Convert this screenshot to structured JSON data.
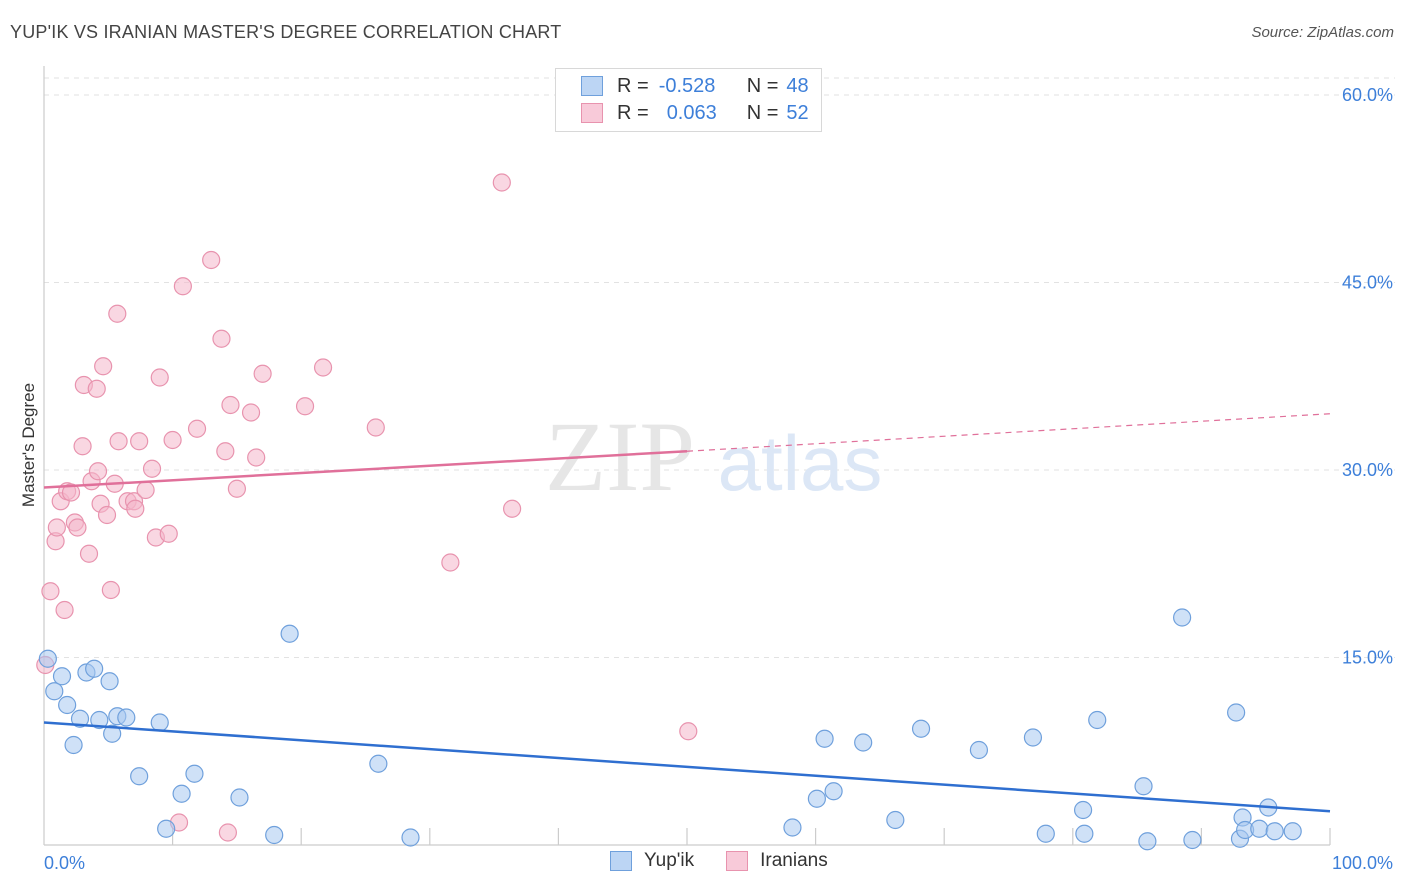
{
  "header": {
    "title": "YUP'IK VS IRANIAN MASTER'S DEGREE CORRELATION CHART",
    "source": "Source: ZipAtlas.com"
  },
  "watermark": {
    "zip": "ZIP",
    "atlas": "atlas"
  },
  "legend": {
    "rows": [
      {
        "r_label": "R =",
        "r_value": "-0.528",
        "n_label": "N =",
        "n_value": "48"
      },
      {
        "r_label": "R =",
        "r_value": "0.063",
        "n_label": "N =",
        "n_value": "52"
      }
    ]
  },
  "colors": {
    "yupik_fill": "#a8c8f0",
    "yupik_stroke": "#6fa0dc",
    "yupik_line": "#2f6fd0",
    "iranian_fill": "#f4b7cb",
    "iranian_stroke": "#e893ae",
    "iranian_line": "#e0709a",
    "axis_label": "#3d7fd9",
    "grid": "#e2e2e2"
  },
  "chart_data": {
    "type": "scatter",
    "title": "YUP'IK VS IRANIAN MASTER'S DEGREE CORRELATION CHART",
    "xlabel": "",
    "ylabel": "Master's Degree",
    "xlim": [
      0,
      100
    ],
    "ylim": [
      0,
      62
    ],
    "x_tick_labels": [
      "0.0%",
      "100.0%"
    ],
    "y_ticks": [
      15,
      30,
      45,
      60
    ],
    "y_tick_labels": [
      "15.0%",
      "30.0%",
      "45.0%",
      "60.0%"
    ],
    "grid": true,
    "legend_position": "top-center",
    "series": [
      {
        "name": "Yup'ik",
        "r": -0.528,
        "n": 48,
        "trend": {
          "x": [
            0,
            100
          ],
          "y": [
            9.8,
            2.7
          ],
          "dashed_from": null
        },
        "points": [
          [
            0.3,
            14.9
          ],
          [
            0.8,
            12.3
          ],
          [
            1.4,
            13.5
          ],
          [
            1.8,
            11.2
          ],
          [
            2.3,
            8.0
          ],
          [
            2.8,
            10.1
          ],
          [
            3.3,
            13.8
          ],
          [
            3.9,
            14.1
          ],
          [
            4.3,
            10.0
          ],
          [
            5.1,
            13.1
          ],
          [
            5.3,
            8.9
          ],
          [
            5.7,
            10.3
          ],
          [
            6.4,
            10.2
          ],
          [
            7.4,
            5.5
          ],
          [
            9.0,
            9.8
          ],
          [
            9.5,
            1.3
          ],
          [
            10.7,
            4.1
          ],
          [
            11.7,
            5.7
          ],
          [
            15.2,
            3.8
          ],
          [
            17.9,
            0.8
          ],
          [
            19.1,
            16.9
          ],
          [
            26.0,
            6.5
          ],
          [
            28.5,
            0.6
          ],
          [
            58.2,
            1.4
          ],
          [
            60.7,
            8.5
          ],
          [
            60.1,
            3.7
          ],
          [
            61.4,
            4.3
          ],
          [
            63.7,
            8.2
          ],
          [
            66.2,
            2.0
          ],
          [
            68.2,
            9.3
          ],
          [
            72.7,
            7.6
          ],
          [
            76.9,
            8.6
          ],
          [
            77.9,
            0.9
          ],
          [
            80.8,
            2.8
          ],
          [
            80.9,
            0.9
          ],
          [
            81.9,
            10.0
          ],
          [
            88.5,
            18.2
          ],
          [
            85.8,
            0.3
          ],
          [
            85.5,
            4.7
          ],
          [
            89.3,
            0.4
          ],
          [
            92.7,
            10.6
          ],
          [
            93.0,
            0.5
          ],
          [
            93.2,
            2.2
          ],
          [
            93.4,
            1.2
          ],
          [
            94.5,
            1.3
          ],
          [
            95.2,
            3.0
          ],
          [
            95.7,
            1.1
          ],
          [
            97.1,
            1.1
          ]
        ]
      },
      {
        "name": "Iranians",
        "r": 0.063,
        "n": 52,
        "trend": {
          "x": [
            0,
            50,
            100
          ],
          "y": [
            28.6,
            31.5,
            34.5
          ],
          "dashed_from": 50
        },
        "points": [
          [
            0.1,
            14.4
          ],
          [
            0.5,
            20.3
          ],
          [
            0.9,
            24.3
          ],
          [
            1.0,
            25.4
          ],
          [
            1.3,
            27.5
          ],
          [
            1.6,
            18.8
          ],
          [
            1.8,
            28.3
          ],
          [
            2.1,
            28.2
          ],
          [
            2.4,
            25.8
          ],
          [
            2.6,
            25.4
          ],
          [
            3.0,
            31.9
          ],
          [
            3.1,
            36.8
          ],
          [
            3.5,
            23.3
          ],
          [
            3.7,
            29.1
          ],
          [
            4.1,
            36.5
          ],
          [
            4.2,
            29.9
          ],
          [
            4.4,
            27.3
          ],
          [
            4.6,
            38.3
          ],
          [
            4.9,
            26.4
          ],
          [
            5.2,
            20.4
          ],
          [
            5.5,
            28.9
          ],
          [
            5.7,
            42.5
          ],
          [
            5.8,
            32.3
          ],
          [
            6.5,
            27.5
          ],
          [
            7.0,
            27.5
          ],
          [
            7.1,
            26.9
          ],
          [
            7.4,
            32.3
          ],
          [
            7.9,
            28.4
          ],
          [
            8.4,
            30.1
          ],
          [
            8.7,
            24.6
          ],
          [
            9.0,
            37.4
          ],
          [
            9.7,
            24.9
          ],
          [
            10.0,
            32.4
          ],
          [
            10.5,
            1.8
          ],
          [
            10.8,
            44.7
          ],
          [
            11.9,
            33.3
          ],
          [
            13.0,
            46.8
          ],
          [
            13.8,
            40.5
          ],
          [
            14.1,
            31.5
          ],
          [
            14.3,
            1.0
          ],
          [
            14.5,
            35.2
          ],
          [
            15.0,
            28.5
          ],
          [
            16.1,
            34.6
          ],
          [
            16.5,
            31.0
          ],
          [
            17.0,
            37.7
          ],
          [
            20.3,
            35.1
          ],
          [
            21.7,
            38.2
          ],
          [
            25.8,
            33.4
          ],
          [
            31.6,
            22.6
          ],
          [
            35.6,
            53.0
          ],
          [
            36.4,
            26.9
          ],
          [
            50.1,
            9.1
          ]
        ]
      }
    ]
  },
  "bottom_legend": {
    "series1": "Yup'ik",
    "series2": "Iranians"
  }
}
